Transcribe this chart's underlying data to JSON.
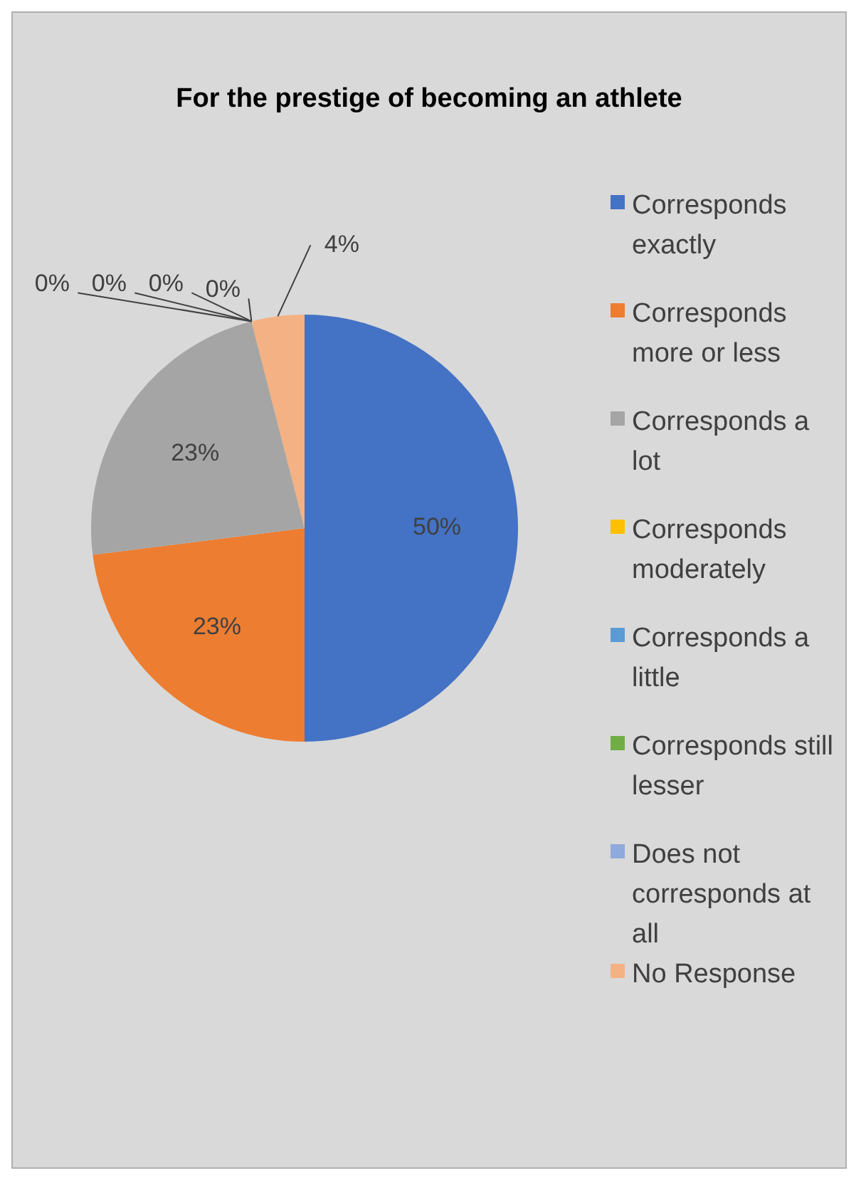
{
  "chart_data": {
    "type": "pie",
    "title": "For the prestige of becoming an athlete",
    "categories": [
      "Corresponds exactly",
      "Corresponds more or less",
      "Corresponds a lot",
      "Corresponds moderately",
      "Corresponds a little",
      "Corresponds still lesser",
      "Does not corresponds at all",
      "No Response"
    ],
    "values": [
      50,
      23,
      23,
      0,
      0,
      0,
      0,
      4
    ],
    "value_labels": [
      "50%",
      "23%",
      "23%",
      "0%",
      "0%",
      "0%",
      "0%",
      "4%"
    ],
    "colors": [
      "#4472c4",
      "#ed7d31",
      "#a5a5a5",
      "#ffc000",
      "#5b9bd5",
      "#70ad47",
      "#8faadc",
      "#f4b183"
    ],
    "legend": "right"
  }
}
